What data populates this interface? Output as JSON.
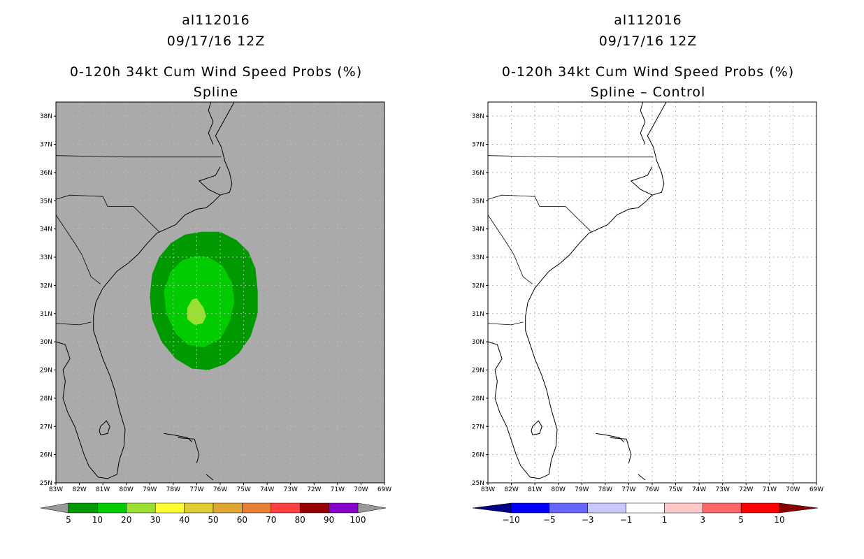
{
  "panels": [
    {
      "storm_id": "al112016",
      "datetime": "09/17/16 12Z",
      "product": "0-120h 34kt Cum Wind Speed Probs (%)",
      "subtitle": "Spline",
      "background": "#aaaaaa",
      "colorbar": {
        "colors": [
          "#009900",
          "#00cc00",
          "#99e033",
          "#ffff33",
          "#e0cc33",
          "#e0a633",
          "#e68033",
          "#ff4040",
          "#990000",
          "#8800cc"
        ],
        "labels": [
          "5",
          "10",
          "20",
          "30",
          "40",
          "50",
          "60",
          "70",
          "80",
          "90",
          "100"
        ],
        "end_colors": [
          "#999999",
          "#999999"
        ]
      },
      "probability_field": [
        {
          "level": "5-10%",
          "color": "#009900"
        },
        {
          "level": "10-20%",
          "color": "#00cc00"
        },
        {
          "level": "20-30%",
          "color": "#99e033"
        }
      ]
    },
    {
      "storm_id": "al112016",
      "datetime": "09/17/16 12Z",
      "product": "0-120h 34kt Cum Wind Speed Probs (%)",
      "subtitle": "Spline – Control",
      "background": "#ffffff",
      "colorbar": {
        "colors": [
          "#0000ff",
          "#6666ff",
          "#c8c8ff",
          "#ffffff",
          "#ffc8c8",
          "#ff6666",
          "#ff0000"
        ],
        "labels": [
          "−10",
          "−5",
          "−3",
          "−1",
          "1",
          "3",
          "5",
          "10"
        ],
        "end_colors": [
          "#000088",
          "#880000"
        ]
      }
    }
  ],
  "axes": {
    "lat_labels": [
      "38N",
      "37N",
      "36N",
      "35N",
      "34N",
      "33N",
      "32N",
      "31N",
      "30N",
      "29N",
      "28N",
      "27N",
      "26N",
      "25N"
    ],
    "lon_labels": [
      "83W",
      "82W",
      "81W",
      "80W",
      "79W",
      "78W",
      "77W",
      "76W",
      "75W",
      "74W",
      "73W",
      "72W",
      "71W",
      "70W",
      "69W"
    ]
  }
}
